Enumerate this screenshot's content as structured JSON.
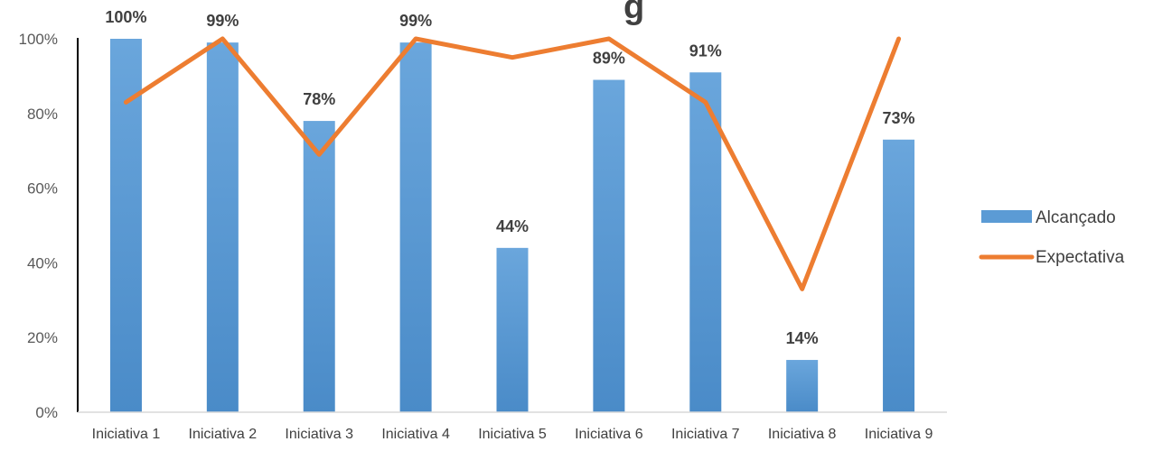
{
  "chart_data": {
    "type": "bar",
    "title_fragment": "g",
    "categories": [
      "Iniciativa 1",
      "Iniciativa 2",
      "Iniciativa 3",
      "Iniciativa 4",
      "Iniciativa 5",
      "Iniciativa 6",
      "Iniciativa 7",
      "Iniciativa 8",
      "Iniciativa 9"
    ],
    "y_ticks": [
      "0%",
      "20%",
      "40%",
      "60%",
      "80%",
      "100%"
    ],
    "ylim": [
      0,
      1
    ],
    "series": [
      {
        "name": "Alcançado",
        "kind": "bar",
        "color": "#5b9bd5",
        "values": [
          1.0,
          0.99,
          0.78,
          0.99,
          0.44,
          0.89,
          0.91,
          0.14,
          0.73
        ],
        "labels": [
          "100%",
          "99%",
          "78%",
          "99%",
          "44%",
          "89%",
          "91%",
          "14%",
          "73%"
        ]
      },
      {
        "name": "Expectativa",
        "kind": "line",
        "color": "#ed7d31",
        "values": [
          0.83,
          1.0,
          0.69,
          1.0,
          0.95,
          1.0,
          0.83,
          0.33,
          1.0
        ]
      }
    ],
    "grid": false,
    "legend_position": "right"
  }
}
